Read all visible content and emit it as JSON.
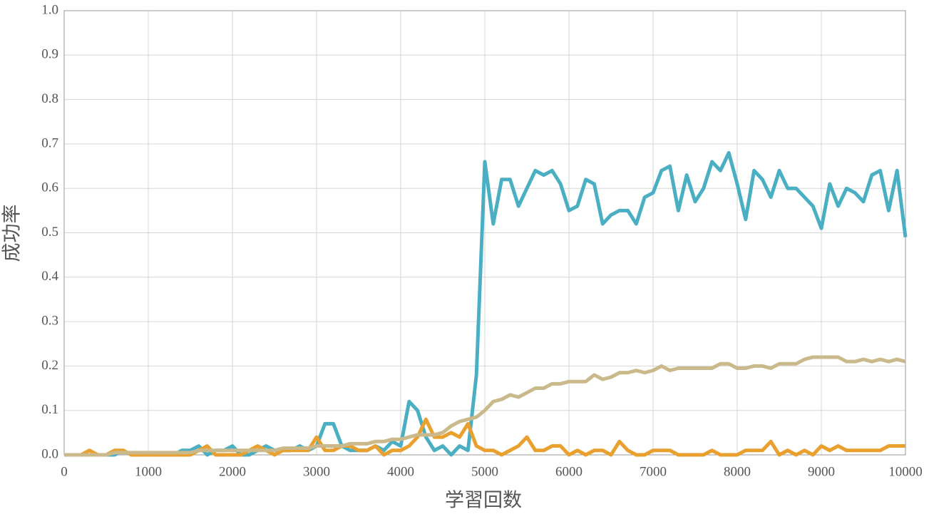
{
  "chart_data": {
    "type": "line",
    "xlabel": "学習回数",
    "ylabel": "成功率",
    "x": [
      0,
      100,
      200,
      300,
      400,
      500,
      600,
      700,
      800,
      900,
      1000,
      1100,
      1200,
      1300,
      1400,
      1500,
      1600,
      1700,
      1800,
      1900,
      2000,
      2100,
      2200,
      2300,
      2400,
      2500,
      2600,
      2700,
      2800,
      2900,
      3000,
      3100,
      3200,
      3300,
      3400,
      3500,
      3600,
      3700,
      3800,
      3900,
      4000,
      4100,
      4200,
      4300,
      4400,
      4500,
      4600,
      4700,
      4800,
      4900,
      5000,
      5100,
      5200,
      5300,
      5400,
      5500,
      5600,
      5700,
      5800,
      5900,
      6000,
      6100,
      6200,
      6300,
      6400,
      6500,
      6600,
      6700,
      6800,
      6900,
      7000,
      7100,
      7200,
      7300,
      7400,
      7500,
      7600,
      7700,
      7800,
      7900,
      8000,
      8100,
      8200,
      8300,
      8400,
      8500,
      8600,
      8700,
      8800,
      8900,
      9000,
      9100,
      9200,
      9300,
      9400,
      9500,
      9600,
      9700,
      9800,
      9900,
      10000
    ],
    "series": [
      {
        "color": "#4bafc3",
        "values": [
          0,
          0,
          0,
          0,
          0,
          0,
          0,
          0.01,
          0,
          0,
          0,
          0,
          0,
          0,
          0.01,
          0.01,
          0.02,
          0,
          0.01,
          0.01,
          0.02,
          0,
          0,
          0.01,
          0.02,
          0.01,
          0.01,
          0.01,
          0.02,
          0.01,
          0.02,
          0.07,
          0.07,
          0.02,
          0.01,
          0.01,
          0.01,
          0.02,
          0.01,
          0.03,
          0.02,
          0.12,
          0.1,
          0.04,
          0.01,
          0.02,
          0,
          0.02,
          0.01,
          0.18,
          0.66,
          0.52,
          0.62,
          0.62,
          0.56,
          0.6,
          0.64,
          0.63,
          0.64,
          0.61,
          0.55,
          0.56,
          0.62,
          0.61,
          0.52,
          0.54,
          0.55,
          0.55,
          0.52,
          0.58,
          0.59,
          0.64,
          0.65,
          0.55,
          0.63,
          0.57,
          0.6,
          0.66,
          0.64,
          0.68,
          0.61,
          0.53,
          0.64,
          0.62,
          0.58,
          0.64,
          0.6,
          0.6,
          0.58,
          0.56,
          0.51,
          0.61,
          0.56,
          0.6,
          0.59,
          0.57,
          0.63,
          0.64,
          0.55,
          0.64,
          0.49
        ]
      },
      {
        "color": "#e9a02f",
        "values": [
          0,
          0,
          0,
          0.01,
          0,
          0,
          0.01,
          0.01,
          0,
          0,
          0,
          0,
          0,
          0,
          0,
          0,
          0.01,
          0.02,
          0,
          0,
          0,
          0,
          0.01,
          0.02,
          0.01,
          0,
          0.01,
          0.01,
          0.01,
          0.01,
          0.04,
          0.01,
          0.01,
          0.02,
          0.02,
          0.01,
          0.01,
          0.02,
          0,
          0.01,
          0.01,
          0.02,
          0.04,
          0.08,
          0.04,
          0.04,
          0.05,
          0.04,
          0.07,
          0.02,
          0.01,
          0.01,
          0,
          0.01,
          0.02,
          0.04,
          0.01,
          0.01,
          0.02,
          0.02,
          0,
          0.01,
          0,
          0.01,
          0.01,
          0,
          0.03,
          0.01,
          0,
          0,
          0.01,
          0.01,
          0.01,
          0,
          0,
          0,
          0,
          0.01,
          0,
          0,
          0,
          0.01,
          0.01,
          0.01,
          0.03,
          0,
          0.01,
          0,
          0.01,
          0,
          0.02,
          0.01,
          0.02,
          0.01,
          0.01,
          0.01,
          0.01,
          0.01,
          0.02,
          0.02,
          0.02
        ]
      },
      {
        "color": "#c9b98b",
        "values": [
          0,
          0,
          0,
          0,
          0,
          0,
          0.005,
          0.005,
          0.005,
          0.005,
          0.005,
          0.005,
          0.005,
          0.005,
          0.005,
          0.005,
          0.01,
          0.01,
          0.01,
          0.01,
          0.01,
          0.01,
          0.01,
          0.01,
          0.01,
          0.01,
          0.015,
          0.015,
          0.015,
          0.015,
          0.02,
          0.02,
          0.02,
          0.02,
          0.025,
          0.025,
          0.025,
          0.03,
          0.03,
          0.035,
          0.035,
          0.04,
          0.045,
          0.045,
          0.045,
          0.05,
          0.065,
          0.075,
          0.08,
          0.085,
          0.1,
          0.12,
          0.125,
          0.135,
          0.13,
          0.14,
          0.15,
          0.15,
          0.16,
          0.16,
          0.165,
          0.165,
          0.165,
          0.18,
          0.17,
          0.175,
          0.185,
          0.185,
          0.19,
          0.185,
          0.19,
          0.2,
          0.19,
          0.195,
          0.195,
          0.195,
          0.195,
          0.195,
          0.205,
          0.205,
          0.195,
          0.195,
          0.2,
          0.2,
          0.195,
          0.205,
          0.205,
          0.205,
          0.215,
          0.22,
          0.22,
          0.22,
          0.22,
          0.21,
          0.21,
          0.215,
          0.21,
          0.215,
          0.21,
          0.215,
          0.21
        ]
      }
    ],
    "xlim": [
      0,
      10000
    ],
    "xticks": [
      0,
      1000,
      2000,
      3000,
      4000,
      5000,
      6000,
      7000,
      8000,
      9000,
      10000
    ],
    "ylim": [
      0,
      1
    ],
    "yticks": [
      {
        "value": 0,
        "label": "0.0"
      },
      0.1,
      0.2,
      0.3,
      0.4,
      0.5,
      0.6,
      0.7,
      0.8,
      0.9,
      {
        "value": 1,
        "label": "1.0"
      }
    ],
    "grid": true
  }
}
